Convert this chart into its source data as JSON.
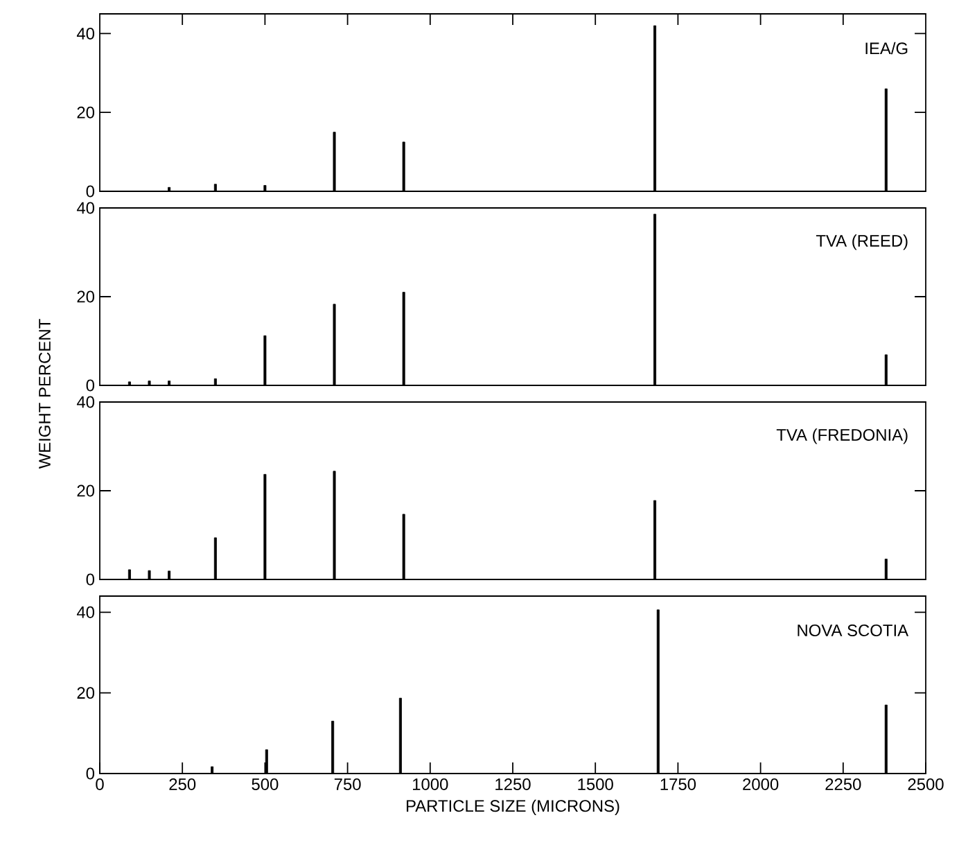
{
  "chart_data": [
    {
      "type": "bar",
      "title": "IEA/G",
      "x": [
        210,
        350,
        500,
        710,
        920,
        1680,
        2380
      ],
      "values": [
        1,
        1.8,
        1.5,
        15,
        12.5,
        42,
        26
      ],
      "color": "#000000",
      "xlim": [
        0,
        2500
      ],
      "xticks": [
        250,
        500,
        750,
        1000,
        1250,
        1500,
        1750,
        2000,
        2250
      ],
      "ylim": [
        0,
        45
      ],
      "yticks": [
        0,
        20,
        40
      ],
      "tick_labels": "y"
    },
    {
      "type": "bar",
      "title": "TVA (REED)",
      "ylabel": "WEIGHT PERCENT",
      "x": [
        90,
        150,
        210,
        350,
        500,
        710,
        920,
        1680,
        2380
      ],
      "values": [
        0.8,
        1,
        1,
        1.5,
        11.2,
        18.3,
        21,
        38.6,
        6.9
      ],
      "color": "#000000",
      "xlim": [
        0,
        2500
      ],
      "ylim": [
        0,
        40
      ],
      "yticks": [
        0,
        20,
        40
      ],
      "tick_labels": "y"
    },
    {
      "type": "bar",
      "title": "TVA (FREDONIA)",
      "x": [
        90,
        150,
        210,
        350,
        500,
        710,
        920,
        1680,
        2380
      ],
      "values": [
        2.2,
        2,
        1.9,
        9.4,
        23.7,
        24.4,
        14.7,
        17.8,
        4.6
      ],
      "color": "#000000",
      "xlim": [
        0,
        2500
      ],
      "ylim": [
        0,
        40
      ],
      "yticks": [
        0,
        20,
        40
      ],
      "tick_labels": "y"
    },
    {
      "type": "bar",
      "title": "NOVA SCOTIA",
      "xlabel": "PARTICLE SIZE (MICRONS)",
      "x": [
        340,
        505,
        705,
        910,
        1690,
        2380
      ],
      "values": [
        1.7,
        5.9,
        13,
        18.7,
        40.6,
        17
      ],
      "color": "#000000",
      "xlim": [
        0,
        2500
      ],
      "xticks": [
        0,
        250,
        500,
        750,
        1000,
        1250,
        1500,
        1750,
        2000,
        2250,
        2500
      ],
      "ylim": [
        0,
        44
      ],
      "yticks": [
        0,
        20,
        40
      ]
    }
  ]
}
